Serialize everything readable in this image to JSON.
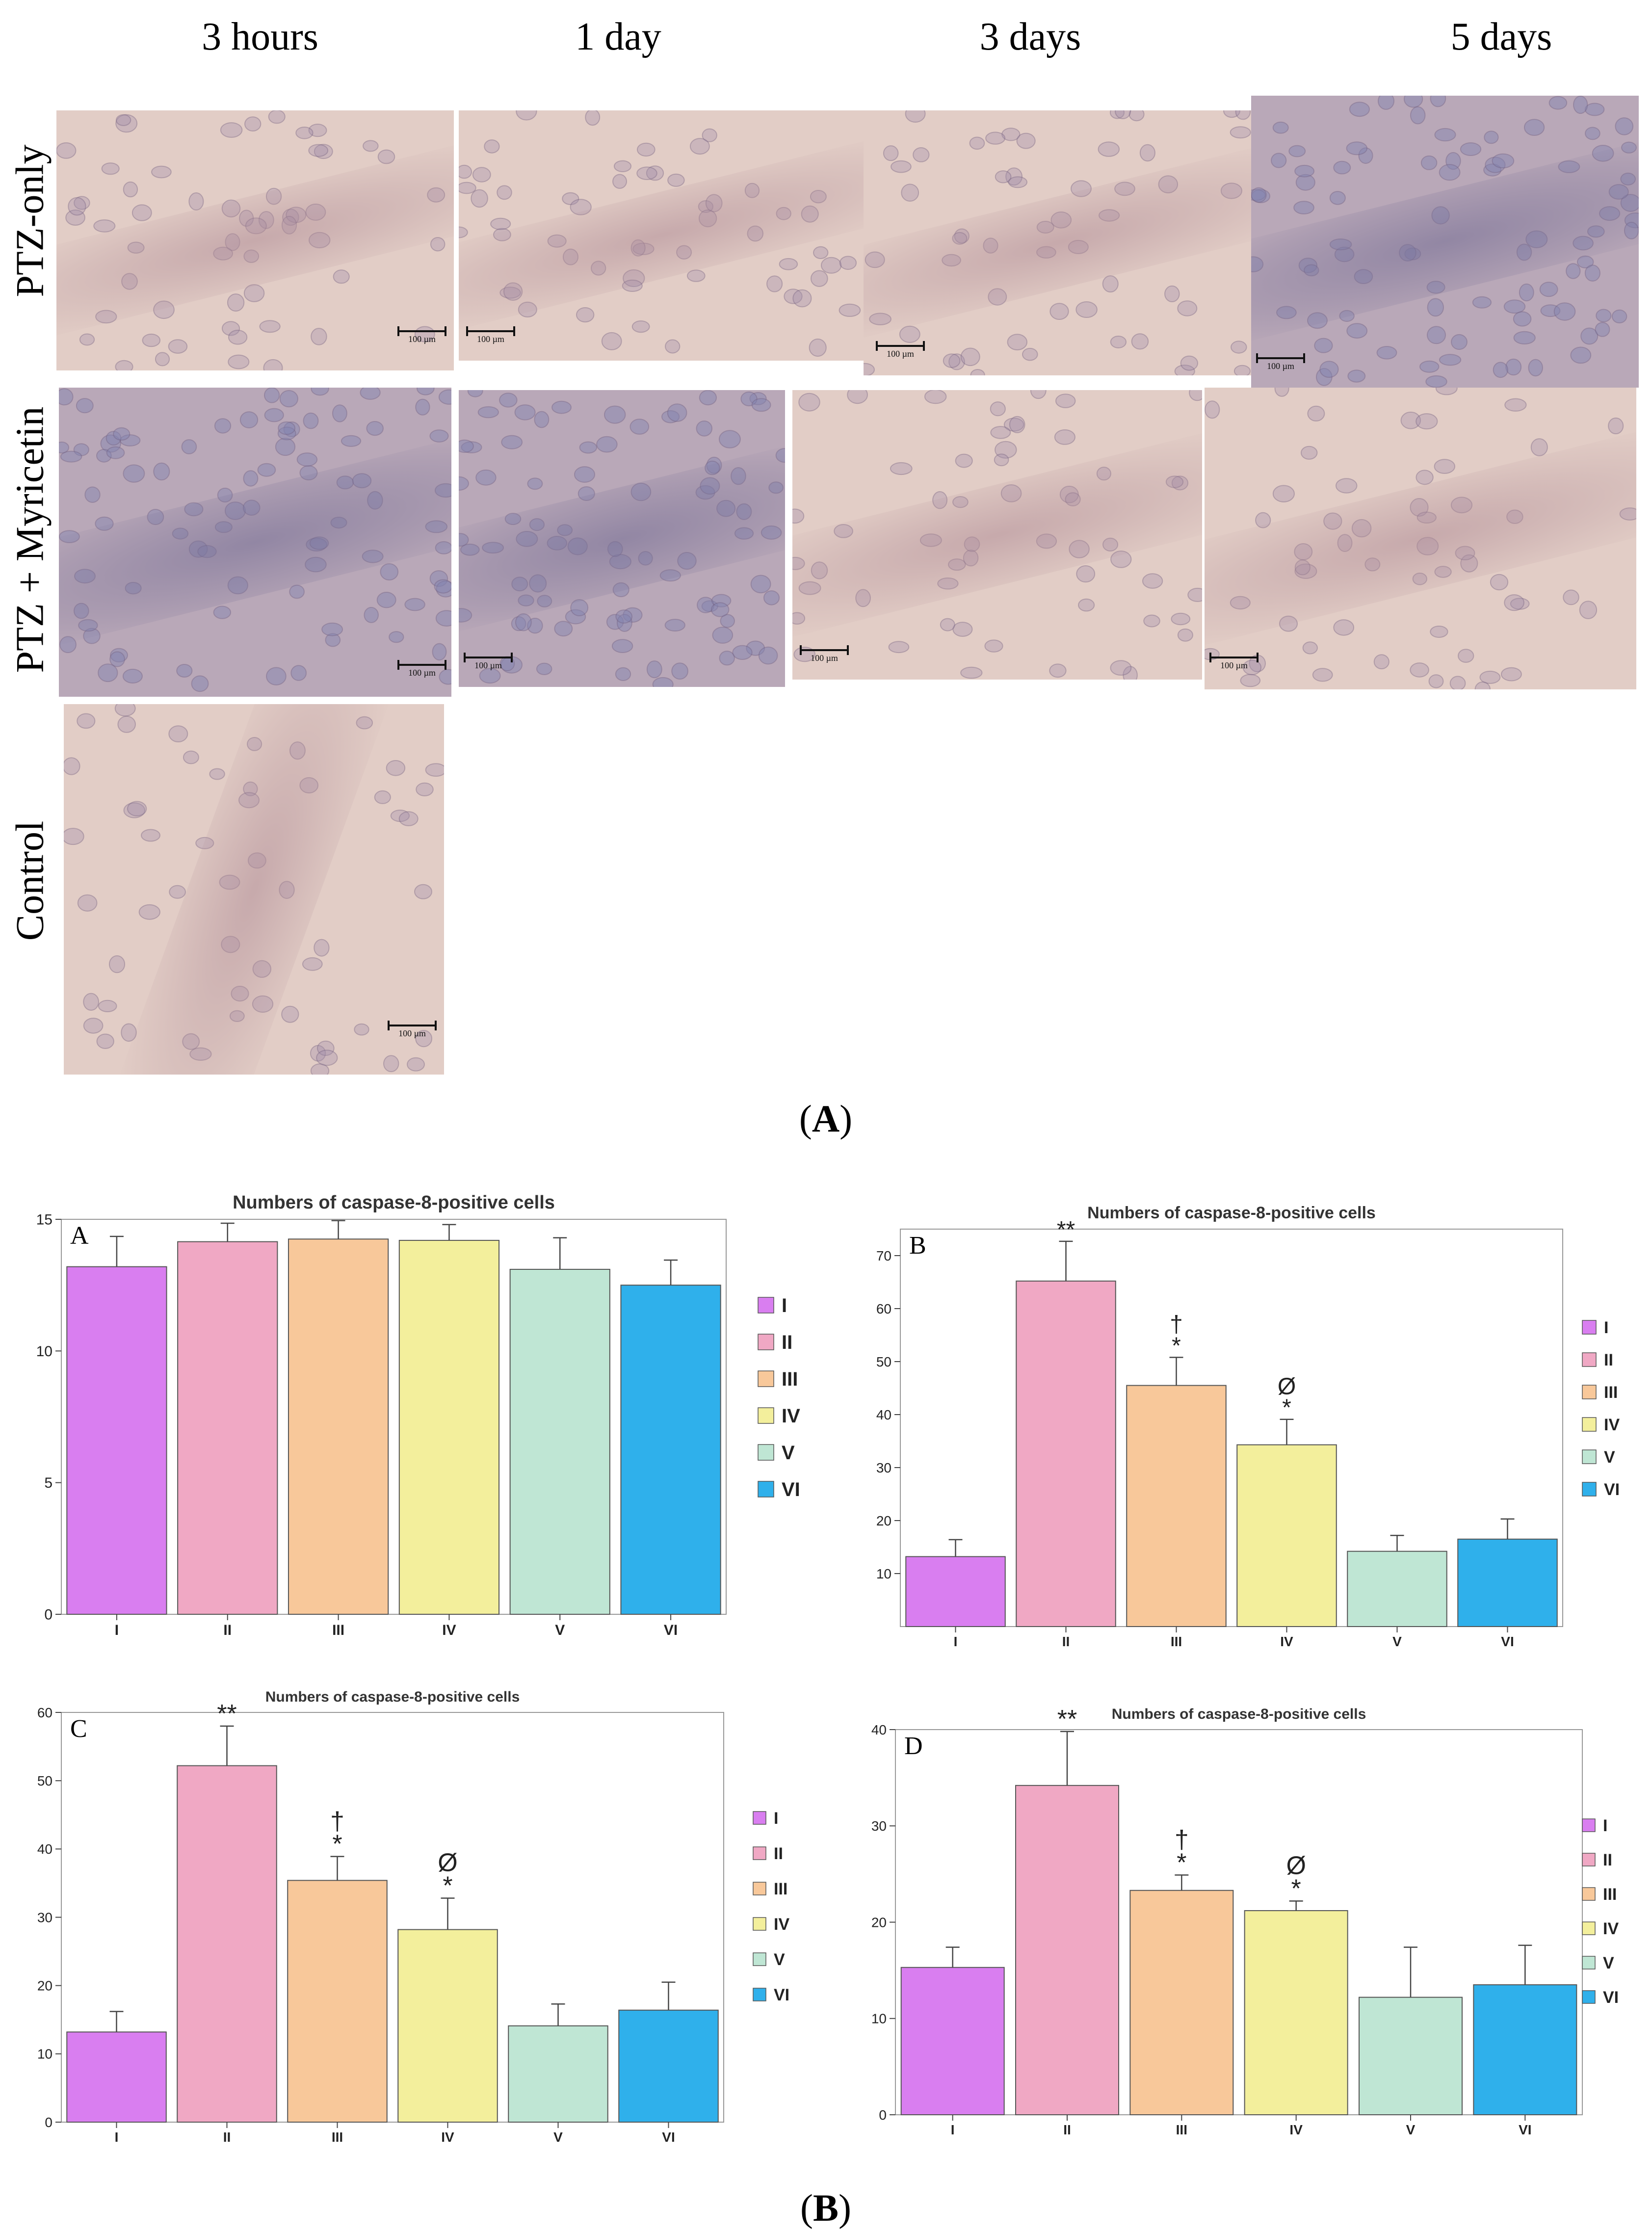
{
  "figure": {
    "col_headers": [
      "3 hours",
      "1 day",
      "3 days",
      "5 days"
    ],
    "row_labels": [
      "PTZ-only",
      "PTZ + Myricetin",
      "Control"
    ],
    "scale_label": "100 µm",
    "caption_a": "A",
    "caption_b": "B"
  },
  "colors": {
    "I": "#d97ef0",
    "II": "#f0a8c4",
    "III": "#f8c89a",
    "IV": "#f3ef9c",
    "V": "#bfe6d4",
    "VI": "#2fb0eb"
  },
  "chart_data": [
    {
      "type": "bar",
      "panel_letter": "A",
      "title": "Numbers of caspase-8-positive cells",
      "categories": [
        "I",
        "II",
        "III",
        "IV",
        "V",
        "VI"
      ],
      "values": [
        13.2,
        14.15,
        14.25,
        14.2,
        13.1,
        12.5
      ],
      "errors": [
        1.15,
        0.7,
        0.7,
        0.6,
        1.2,
        0.95
      ],
      "annotations": [
        [],
        [],
        [],
        [],
        [],
        []
      ],
      "ylim": [
        0,
        15
      ],
      "yticks": [
        0,
        5,
        10,
        15
      ],
      "legend": [
        "I",
        "II",
        "III",
        "IV",
        "V",
        "VI"
      ],
      "legend_position": "right"
    },
    {
      "type": "bar",
      "panel_letter": "B",
      "title": "Numbers of caspase-8-positive cells",
      "categories": [
        "I",
        "II",
        "III",
        "IV",
        "V",
        "VI"
      ],
      "values": [
        13.2,
        65.2,
        45.5,
        34.3,
        14.2,
        16.5
      ],
      "errors": [
        3.2,
        7.5,
        5.3,
        4.8,
        3.0,
        3.8
      ],
      "annotations": [
        [],
        [
          "**"
        ],
        [
          "†",
          "*"
        ],
        [
          "Ø",
          "*"
        ],
        [],
        []
      ],
      "ylim": [
        0,
        75
      ],
      "yticks": [
        10,
        20,
        30,
        40,
        50,
        60,
        70
      ],
      "legend": [
        "I",
        "II",
        "III",
        "IV",
        "V",
        "VI"
      ],
      "legend_position": "right"
    },
    {
      "type": "bar",
      "panel_letter": "C",
      "title": "Numbers of caspase-8-positive cells",
      "categories": [
        "I",
        "II",
        "III",
        "IV",
        "V",
        "VI"
      ],
      "values": [
        13.2,
        52.2,
        35.4,
        28.2,
        14.1,
        16.4
      ],
      "errors": [
        3.0,
        5.8,
        3.5,
        4.6,
        3.2,
        4.1
      ],
      "annotations": [
        [],
        [
          "**"
        ],
        [
          "†",
          "*"
        ],
        [
          "Ø",
          "*"
        ],
        [],
        []
      ],
      "ylim": [
        0,
        60
      ],
      "yticks": [
        0,
        10,
        20,
        30,
        40,
        50,
        60
      ],
      "legend": [
        "I",
        "II",
        "III",
        "IV",
        "V",
        "VI"
      ],
      "legend_position": "right"
    },
    {
      "type": "bar",
      "panel_letter": "D",
      "title": "Numbers of caspase-8-positive cells",
      "categories": [
        "I",
        "II",
        "III",
        "IV",
        "V",
        "VI"
      ],
      "values": [
        15.3,
        34.2,
        23.3,
        21.2,
        12.2,
        13.5
      ],
      "errors": [
        2.1,
        5.6,
        1.6,
        1.0,
        5.2,
        4.1
      ],
      "annotations": [
        [],
        [
          "**"
        ],
        [
          "†",
          "*"
        ],
        [
          "Ø",
          "*"
        ],
        [],
        []
      ],
      "ylim": [
        0,
        40
      ],
      "yticks": [
        0,
        10,
        20,
        30,
        40
      ],
      "legend": [
        "I",
        "II",
        "III",
        "IV",
        "V",
        "VI"
      ],
      "legend_position": "right"
    }
  ]
}
